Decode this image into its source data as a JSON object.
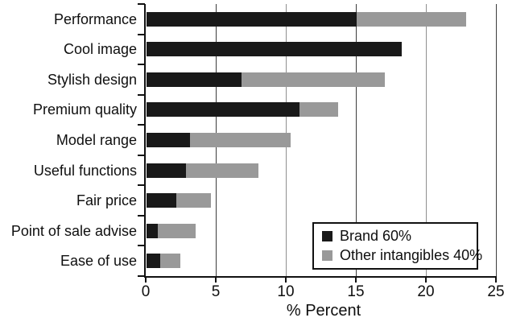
{
  "chart_data": {
    "type": "bar",
    "orientation": "horizontal",
    "stacked": true,
    "title": "",
    "xlabel": "% Percent",
    "xlim": [
      0,
      25
    ],
    "xticks": [
      0,
      5,
      10,
      15,
      20,
      25
    ],
    "grid": "vertical gridlines at each x tick, alternating dark and light gray",
    "legend_position": "inside lower right",
    "categories": [
      "Performance",
      "Cool image",
      "Stylish design",
      "Premium quality",
      "Model range",
      "Useful functions",
      "Fair price",
      "Point of sale advise",
      "Ease of use"
    ],
    "series": [
      {
        "name": "Brand 60%",
        "color": "#191919",
        "values": [
          15.0,
          18.2,
          6.8,
          10.9,
          3.1,
          2.8,
          2.1,
          0.8,
          1.0
        ]
      },
      {
        "name": "Other intangibles 40%",
        "color": "#999999",
        "values": [
          7.8,
          0,
          10.2,
          2.8,
          7.2,
          5.2,
          2.5,
          2.7,
          1.4
        ]
      }
    ],
    "stacked_totals": [
      22.8,
      18.2,
      17.0,
      13.7,
      10.3,
      8.0,
      4.6,
      3.5,
      2.4
    ]
  },
  "colors": {
    "axis": "#111111",
    "grid_dark": "#3c3c3c",
    "grid_light": "#8f8f8f",
    "legend_border": "#111111",
    "background": "#ffffff"
  }
}
